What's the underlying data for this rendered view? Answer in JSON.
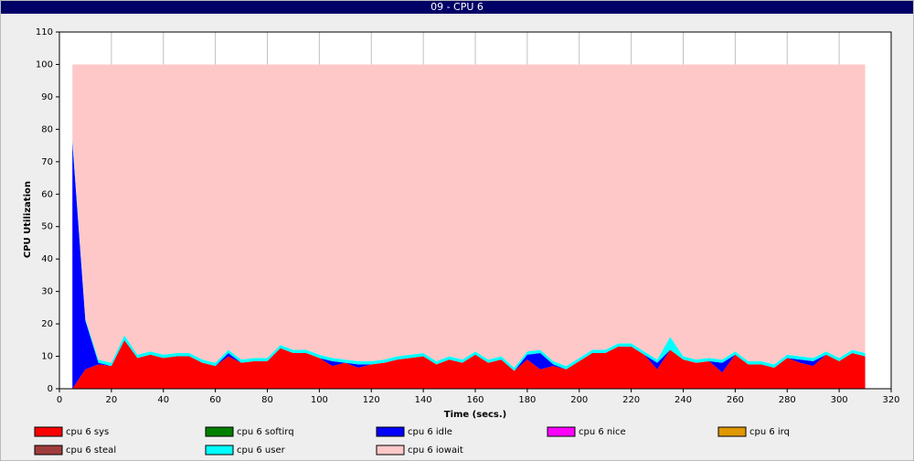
{
  "chart_data": {
    "type": "stacked-area",
    "title": "09 - CPU 6",
    "xlabel": "Time (secs.)",
    "ylabel": "CPU Utilization",
    "xlim": [
      0,
      320
    ],
    "ylim": [
      0,
      110
    ],
    "xticks": [
      0,
      20,
      40,
      60,
      80,
      100,
      120,
      140,
      160,
      180,
      200,
      220,
      240,
      260,
      280,
      300,
      320
    ],
    "yticks": [
      0,
      10,
      20,
      30,
      40,
      50,
      60,
      70,
      80,
      90,
      100,
      110
    ],
    "grid": true,
    "x": [
      5,
      10,
      15,
      20,
      25,
      30,
      35,
      40,
      45,
      50,
      55,
      60,
      65,
      70,
      75,
      80,
      85,
      90,
      95,
      100,
      105,
      110,
      115,
      120,
      125,
      130,
      135,
      140,
      145,
      150,
      155,
      160,
      165,
      170,
      175,
      180,
      185,
      190,
      195,
      200,
      205,
      210,
      215,
      220,
      225,
      230,
      235,
      240,
      245,
      250,
      255,
      260,
      265,
      270,
      275,
      280,
      285,
      290,
      295,
      300,
      305,
      310
    ],
    "series": [
      {
        "name": "cpu 6 sys",
        "color": "#ff0000",
        "values": [
          0,
          6,
          7.5,
          7,
          15,
          9.5,
          10.5,
          9.5,
          10,
          10,
          8,
          7,
          10,
          8,
          8.5,
          8.5,
          12.5,
          11,
          11,
          9.5,
          7,
          8,
          6.5,
          7.5,
          8,
          9,
          9.5,
          10,
          7.5,
          9,
          8,
          10.5,
          8,
          9,
          5.5,
          9,
          6,
          7,
          6,
          8.5,
          11,
          11,
          13,
          13,
          10.5,
          6,
          12,
          9,
          8,
          8.5,
          5,
          10.5,
          7.5,
          7.5,
          6.5,
          9.5,
          8,
          7,
          10.5,
          8.5,
          11,
          10
        ]
      },
      {
        "name": "cpu 6 softirq",
        "color": "#008000",
        "values": [
          0,
          0,
          0,
          0,
          0,
          0,
          0,
          0,
          0,
          0,
          0,
          0,
          0,
          0,
          0,
          0,
          0,
          0,
          0,
          0,
          0,
          0,
          0,
          0,
          0,
          0,
          0,
          0,
          0,
          0,
          0,
          0,
          0,
          0,
          0,
          0,
          0,
          0,
          0,
          0,
          0,
          0,
          0,
          0,
          0,
          0,
          0,
          0,
          0,
          0,
          0,
          0,
          0,
          0,
          0,
          0,
          0,
          0,
          0,
          0,
          0,
          0
        ]
      },
      {
        "name": "cpu 6 idle",
        "color": "#0000ff",
        "values": [
          76,
          15,
          0.5,
          0,
          0,
          0,
          0,
          0,
          0,
          0,
          0,
          0,
          1,
          0,
          0,
          0,
          0,
          0,
          0,
          0,
          1.5,
          0,
          1,
          0,
          0,
          0,
          0,
          0,
          0,
          0,
          0,
          0,
          0,
          0,
          0,
          1.5,
          5,
          0.5,
          0,
          0,
          0,
          0,
          0,
          0,
          0,
          2,
          0,
          0,
          0,
          0,
          3,
          0,
          0,
          0,
          0,
          0,
          1,
          1.5,
          0,
          0,
          0,
          0
        ]
      },
      {
        "name": "cpu 6 nice",
        "color": "#ff00ff",
        "values": [
          0,
          0,
          0,
          0,
          0,
          0,
          0,
          0,
          0,
          0,
          0,
          0,
          0,
          0,
          0,
          0,
          0,
          0,
          0,
          0,
          0,
          0,
          0,
          0,
          0,
          0,
          0,
          0,
          0,
          0,
          0,
          0,
          0,
          0,
          0,
          0,
          0,
          0,
          0,
          0,
          0,
          0,
          0,
          0,
          0,
          0,
          0,
          0,
          0,
          0,
          0,
          0,
          0,
          0,
          0,
          0,
          0,
          0,
          0,
          0,
          0,
          0
        ]
      },
      {
        "name": "cpu 6 irq",
        "color": "#e09800",
        "values": [
          0,
          0,
          0,
          0,
          0,
          0,
          0,
          0,
          0,
          0,
          0,
          0,
          0,
          0,
          0,
          0,
          0,
          0,
          0,
          0,
          0,
          0,
          0,
          0,
          0,
          0,
          0,
          0,
          0,
          0,
          0,
          0,
          0,
          0,
          0,
          0,
          0,
          0,
          0,
          0,
          0,
          0,
          0,
          0,
          0,
          0,
          0,
          0,
          0,
          0,
          0,
          0,
          0,
          0,
          0,
          0,
          0,
          0,
          0,
          0,
          0,
          0
        ]
      },
      {
        "name": "cpu 6 steal",
        "color": "#a03c3c",
        "values": [
          0,
          0,
          0,
          0,
          0,
          0,
          0,
          0,
          0,
          0,
          0,
          0,
          0,
          0,
          0,
          0,
          0,
          0,
          0,
          0,
          0,
          0,
          0,
          0,
          0,
          0,
          0,
          0,
          0,
          0,
          0,
          0,
          0,
          0,
          0,
          0,
          0,
          0,
          0,
          0,
          0,
          0,
          0,
          0,
          0,
          0,
          0,
          0,
          0,
          0,
          0,
          0,
          0,
          0,
          0,
          0,
          0,
          0,
          0,
          0,
          0,
          0
        ]
      },
      {
        "name": "cpu 6 user",
        "color": "#00ffff",
        "values": [
          1,
          0.5,
          1,
          1,
          1.5,
          1,
          1,
          1,
          1,
          1,
          1,
          1,
          1,
          1,
          1,
          1,
          1,
          1,
          1,
          1,
          1,
          1,
          1,
          1,
          1,
          1,
          1,
          1,
          1,
          1,
          1,
          1,
          1,
          1,
          1,
          1,
          1,
          1,
          1,
          1,
          1,
          1,
          1,
          1,
          1,
          1,
          4,
          1,
          1,
          1,
          1,
          1,
          1,
          1,
          1,
          1,
          1,
          1,
          1,
          1,
          1,
          1
        ]
      },
      {
        "name": "cpu 6 iowait",
        "color": "#ffc8c8",
        "values": [
          23,
          78.5,
          91,
          92,
          83.5,
          89.5,
          88.5,
          89.5,
          89,
          89,
          91,
          92,
          88,
          91,
          90.5,
          90.5,
          86.5,
          88,
          88,
          89.5,
          90.5,
          91,
          91.5,
          91.5,
          91,
          90,
          89.5,
          89,
          91.5,
          90,
          91,
          88.5,
          91,
          90,
          93.5,
          88.5,
          88,
          91.5,
          93,
          90.5,
          88,
          88,
          86,
          86,
          88.5,
          91,
          84,
          90,
          91,
          90.5,
          91,
          88.5,
          91.5,
          91.5,
          92.5,
          89.5,
          90,
          90.5,
          88.5,
          90.5,
          88,
          89
        ]
      }
    ]
  }
}
